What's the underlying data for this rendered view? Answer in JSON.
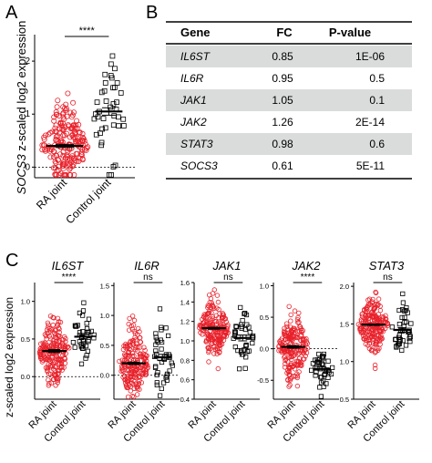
{
  "panels": {
    "a": "A",
    "b": "B",
    "c": "C"
  },
  "panel_a": {
    "ylabel_prefix": "SOCS3",
    "ylabel_suffix": " z-scaled log2 expression",
    "yticks": [
      "0",
      "1",
      "2"
    ],
    "categories": [
      "RA joint",
      "Control joint"
    ],
    "significance": "****"
  },
  "table": {
    "headers": [
      "Gene",
      "FC",
      "P-value"
    ],
    "rows": [
      {
        "gene": "IL6ST",
        "fc": "0.85",
        "p": "1E-06"
      },
      {
        "gene": "IL6R",
        "fc": "0.95",
        "p": "0.5"
      },
      {
        "gene": "JAK1",
        "fc": "1.05",
        "p": "0.1"
      },
      {
        "gene": "JAK2",
        "fc": "1.26",
        "p": "2E-14"
      },
      {
        "gene": "STAT3",
        "fc": "0.98",
        "p": "0.6"
      },
      {
        "gene": "SOCS3",
        "fc": "0.61",
        "p": "5E-11"
      }
    ],
    "shaded_color": "#dadcdb"
  },
  "panel_c": {
    "ylabel": "z-scaled log2 expression",
    "categories": [
      "RA joint",
      "Control joint"
    ]
  },
  "colors": {
    "ra": "#e8202a",
    "control": "#000000"
  },
  "chart_data": [
    {
      "type": "scatter",
      "panel": "A",
      "gene": "SOCS3",
      "categories": [
        "RA joint",
        "Control joint"
      ],
      "ylim": [
        -0.2,
        2.5
      ],
      "yticks": [
        0,
        1,
        2
      ],
      "reference_line": 0,
      "significance": "****",
      "series": [
        {
          "category": "RA joint",
          "mean": 0.4,
          "sem": 0.03,
          "spread_sd": 0.35,
          "n": 200
        },
        {
          "category": "Control joint",
          "mean": 1.05,
          "sem": 0.07,
          "spread_sd": 0.5,
          "n": 40
        }
      ]
    },
    {
      "type": "scatter",
      "panel": "C",
      "gene": "IL6ST",
      "categories": [
        "RA joint",
        "Control joint"
      ],
      "ylim": [
        -0.3,
        1.25
      ],
      "yticks": [
        0,
        0.5,
        1
      ],
      "yticklabels": [
        "0.0",
        "0.5",
        "1.0"
      ],
      "reference_line": 0,
      "significance": "****",
      "series": [
        {
          "category": "RA joint",
          "mean": 0.34,
          "sem": 0.02,
          "spread_sd": 0.22,
          "n": 200
        },
        {
          "category": "Control joint",
          "mean": 0.53,
          "sem": 0.03,
          "spread_sd": 0.17,
          "n": 40
        }
      ]
    },
    {
      "type": "scatter",
      "panel": "C",
      "gene": "IL6R",
      "categories": [
        "RA joint",
        "Control joint"
      ],
      "ylim": [
        -0.4,
        1.55
      ],
      "yticks": [
        0,
        0.5,
        1,
        1.5
      ],
      "yticklabels": [
        "0.0",
        "0.5",
        "1.0",
        "1.5"
      ],
      "reference_line": 0,
      "significance": "ns",
      "series": [
        {
          "category": "RA joint",
          "mean": 0.2,
          "sem": 0.02,
          "spread_sd": 0.28,
          "n": 200
        },
        {
          "category": "Control joint",
          "mean": 0.3,
          "sem": 0.05,
          "spread_sd": 0.35,
          "n": 40
        }
      ]
    },
    {
      "type": "scatter",
      "panel": "C",
      "gene": "JAK1",
      "categories": [
        "RA joint",
        "Control joint"
      ],
      "ylim": [
        0.4,
        1.6
      ],
      "yticks": [
        0.4,
        0.6,
        0.8,
        1,
        1.2,
        1.4,
        1.6
      ],
      "yticklabels": [
        "0.4",
        "0.6",
        "0.8",
        "1.0",
        "1.2",
        "1.4",
        "1.6"
      ],
      "reference_line": null,
      "significance": "ns",
      "series": [
        {
          "category": "RA joint",
          "mean": 1.13,
          "sem": 0.01,
          "spread_sd": 0.13,
          "n": 200
        },
        {
          "category": "Control joint",
          "mean": 1.03,
          "sem": 0.03,
          "spread_sd": 0.12,
          "n": 40
        }
      ]
    },
    {
      "type": "scatter",
      "panel": "C",
      "gene": "JAK2",
      "categories": [
        "RA joint",
        "Control joint"
      ],
      "ylim": [
        -0.8,
        1.05
      ],
      "yticks": [
        -0.5,
        0,
        0.5,
        1
      ],
      "yticklabels": [
        "-0.5",
        "0.0",
        "0.5",
        "1.0"
      ],
      "reference_line": 0,
      "significance": "****",
      "series": [
        {
          "category": "RA joint",
          "mean": 0.03,
          "sem": 0.02,
          "spread_sd": 0.25,
          "n": 200
        },
        {
          "category": "Control joint",
          "mean": -0.32,
          "sem": 0.03,
          "spread_sd": 0.13,
          "n": 40
        }
      ]
    },
    {
      "type": "scatter",
      "panel": "C",
      "gene": "STAT3",
      "categories": [
        "RA joint",
        "Control joint"
      ],
      "ylim": [
        0.5,
        2.05
      ],
      "yticks": [
        0.5,
        1,
        1.5,
        2
      ],
      "yticklabels": [
        "0.5",
        "1.0",
        "1.5",
        "2.0"
      ],
      "reference_line": null,
      "significance": "ns",
      "series": [
        {
          "category": "RA joint",
          "mean": 1.49,
          "sem": 0.01,
          "spread_sd": 0.18,
          "n": 200
        },
        {
          "category": "Control joint",
          "mean": 1.42,
          "sem": 0.03,
          "spread_sd": 0.2,
          "n": 40
        }
      ]
    }
  ]
}
